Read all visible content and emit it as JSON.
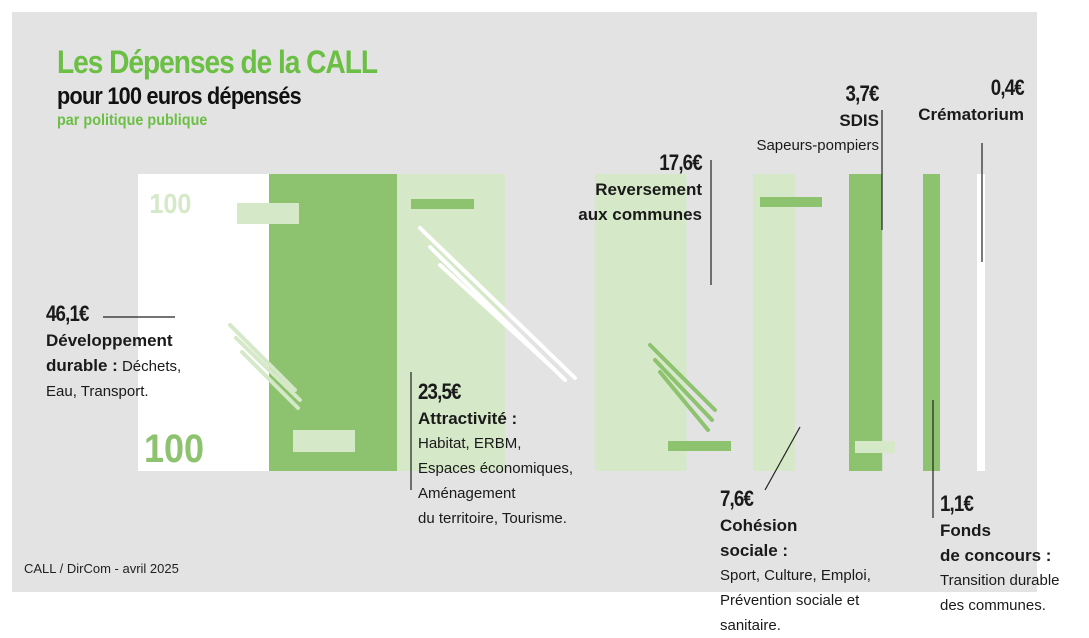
{
  "title": "Les Dépenses de la CALL",
  "subtitle": "pour 100 euros dépensés",
  "subtitle2": "par politique publique",
  "note": "100",
  "footer": "CALL / DirCom - avril 2025",
  "colors": {
    "dark": "#8dc26f",
    "light": "#d5e8c8",
    "accent": "#6cbf45"
  },
  "labels": {
    "dev": {
      "value": "46,1€",
      "title1": "Développement",
      "title2": "durable :",
      "detail1": " Déchets,",
      "detail2": "Eau, Transport."
    },
    "attr": {
      "value": "23,5€",
      "title": "Attractivité :",
      "l1": "Habitat, ERBM,",
      "l2": "Espaces économiques,",
      "l3": "Aménagement",
      "l4": "du territoire, Tourisme."
    },
    "rev": {
      "value": "17,6€",
      "title1": "Reversement",
      "title2": "aux communes"
    },
    "coh": {
      "value": "7,6€",
      "title1": "Cohésion",
      "title2": "sociale :",
      "l1": "Sport, Culture, Emploi,",
      "l2": "Prévention sociale et",
      "l3": "sanitaire."
    },
    "sdis": {
      "value": "3,7€",
      "title": "SDIS",
      "sub": "Sapeurs-pompiers"
    },
    "fonds": {
      "value": "1,1€",
      "title1": "Fonds",
      "title2": "de concours :",
      "l1": "Transition durable",
      "l2": "des communes."
    },
    "crem": {
      "value": "0,4€",
      "title": "Crématorium"
    }
  },
  "chart_data": {
    "type": "bar",
    "title": "Les Dépenses de la CALL",
    "subtitle": "pour 100 euros dépensés",
    "categories": [
      "Développement durable",
      "Attractivité",
      "Reversement aux communes",
      "Cohésion sociale",
      "SDIS",
      "Fonds de concours",
      "Crématorium"
    ],
    "values": [
      46.1,
      23.5,
      17.6,
      7.6,
      3.7,
      1.1,
      0.4
    ],
    "unit": "€",
    "total": 100
  }
}
